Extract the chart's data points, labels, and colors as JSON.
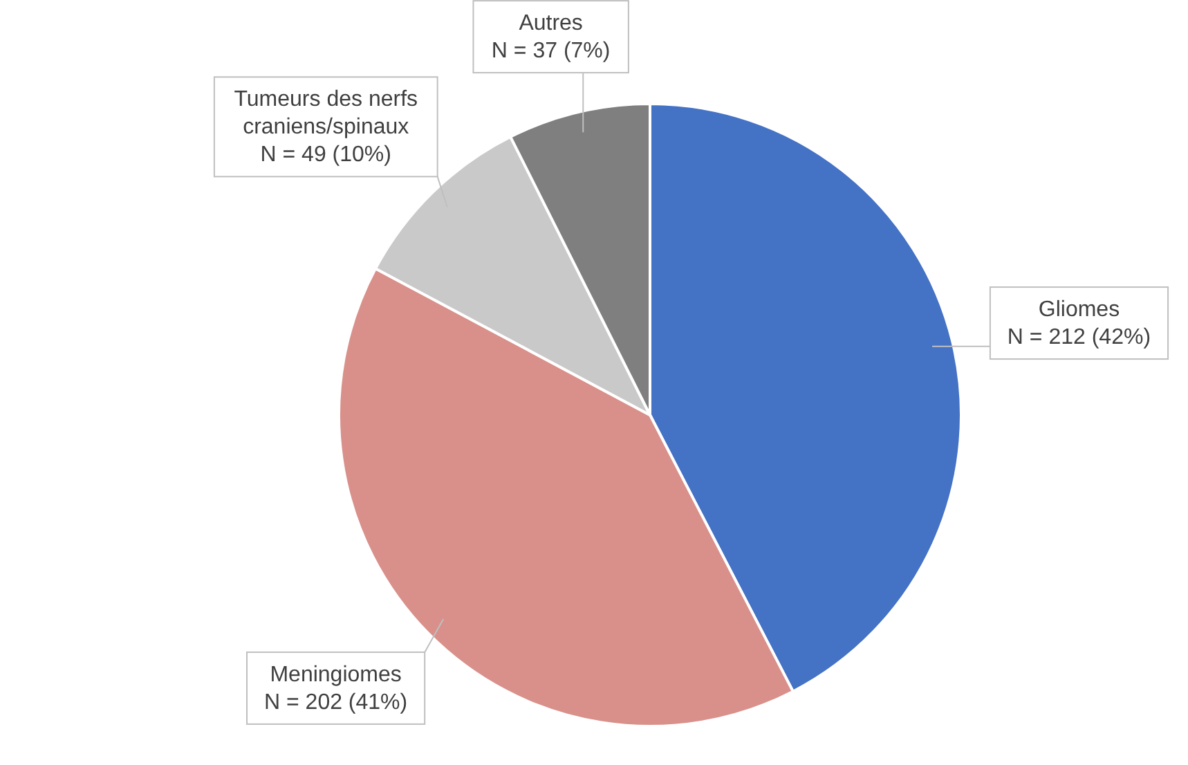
{
  "chart_data": {
    "type": "pie",
    "categories": [
      "Gliomes",
      "Meningiomes",
      "Tumeurs des nerfs craniens/spinaux",
      "Autres"
    ],
    "values": [
      212,
      202,
      49,
      37
    ],
    "value_labels": [
      "N = 212 (42%)",
      "N = 202 (41%)",
      "N = 49 (10%)",
      "N = 37 (7%)"
    ],
    "colors": [
      "#4472c4",
      "#d9908a",
      "#c9c9c9",
      "#7f7f7f"
    ]
  }
}
